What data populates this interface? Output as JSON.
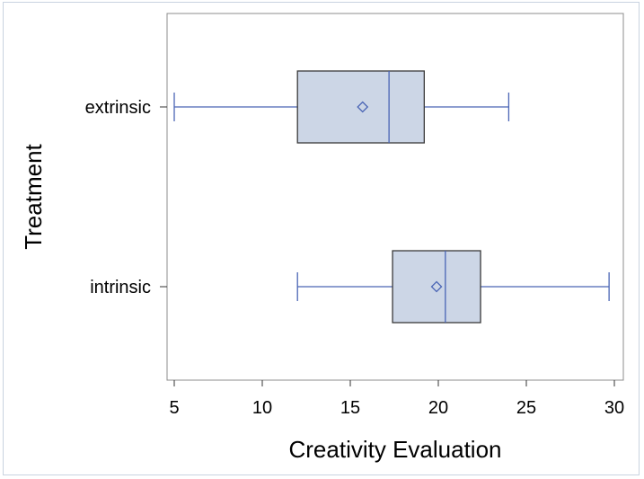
{
  "chart_data": {
    "type": "boxplot",
    "orientation": "horizontal",
    "xlabel": "Creativity Evaluation",
    "ylabel": "Treatment",
    "xlim": [
      5,
      30
    ],
    "xticks": [
      5,
      10,
      15,
      20,
      25,
      30
    ],
    "grid": false,
    "legend": "none",
    "colors": {
      "box_fill": "#ccd6e6",
      "whisker": "#4a65b5",
      "box_edge": "#3a3a3a",
      "mean_marker": "#4a65b5"
    },
    "categories": [
      "extrinsic",
      "intrinsic"
    ],
    "boxes": [
      {
        "category": "extrinsic",
        "min": 5.0,
        "q1": 12.0,
        "median": 17.2,
        "q3": 19.2,
        "max": 24.0,
        "mean": 15.7
      },
      {
        "category": "intrinsic",
        "min": 12.0,
        "q1": 17.4,
        "median": 20.4,
        "q3": 22.4,
        "max": 29.7,
        "mean": 19.9
      }
    ]
  }
}
